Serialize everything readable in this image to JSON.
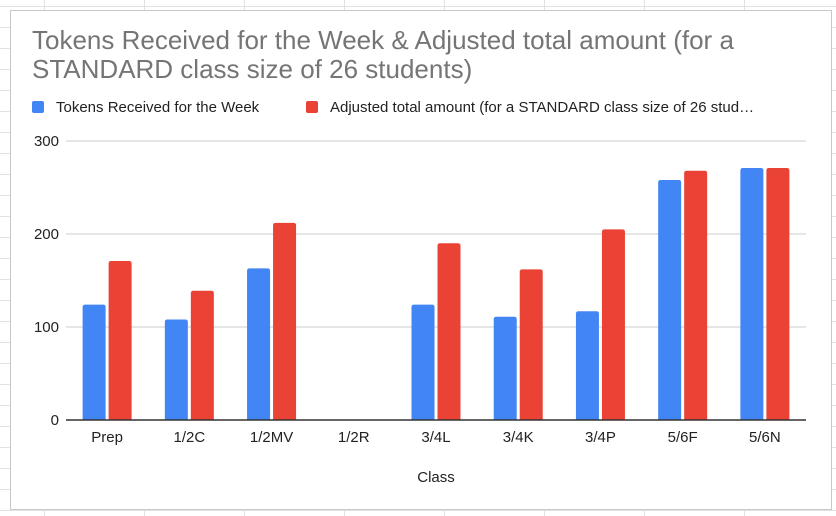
{
  "chart_data": {
    "type": "bar",
    "title": "Tokens Received for the Week & Adjusted total amount (for a STANDARD class size of 26 students)",
    "xlabel": "Class",
    "ylabel": "",
    "categories": [
      "Prep",
      "1/2C",
      "1/2MV",
      "1/2R",
      "3/4L",
      "3/4K",
      "3/4P",
      "5/6F",
      "5/6N"
    ],
    "series": [
      {
        "name": "Tokens Received for the Week",
        "color": "#4285f4",
        "values": [
          124,
          108,
          163,
          null,
          124,
          111,
          117,
          258,
          271
        ]
      },
      {
        "name": "Adjusted total amount (for a STANDARD class size of 26 stud…",
        "color": "#ea4335",
        "values": [
          171,
          139,
          212,
          null,
          190,
          162,
          205,
          268,
          271
        ]
      }
    ],
    "ylim": [
      0,
      300
    ],
    "yticks": [
      0,
      100,
      200,
      300
    ],
    "grid": true,
    "legend_position": "top-left"
  }
}
